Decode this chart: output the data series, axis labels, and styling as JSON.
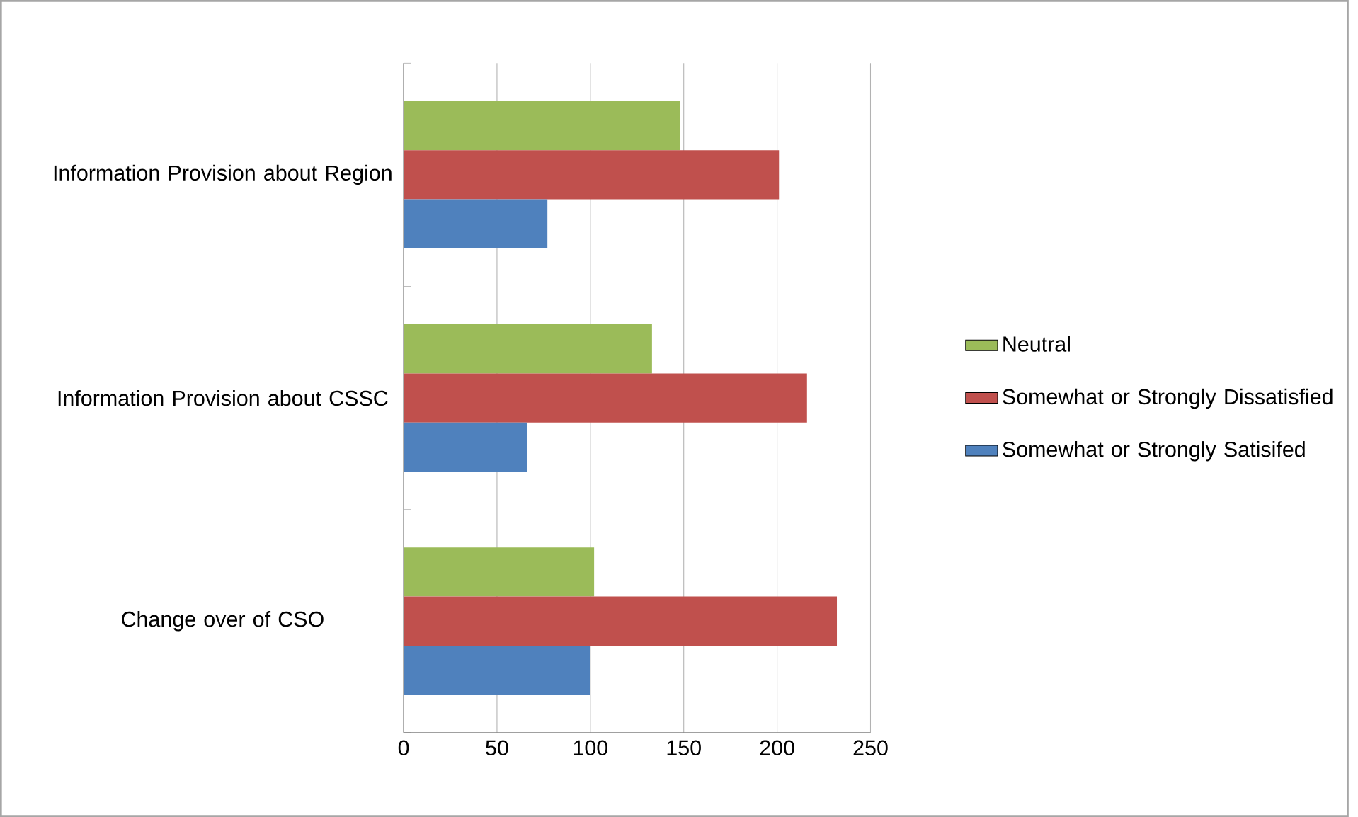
{
  "chart_data": {
    "type": "bar",
    "orientation": "horizontal",
    "categories": [
      "Information Provision about Region",
      "Information Provision about CSSC",
      "Change over of CSO"
    ],
    "series": [
      {
        "name": "Neutral",
        "color": "#9bbb59",
        "values": [
          148,
          133,
          102
        ]
      },
      {
        "name": "Somewhat or Strongly Dissatisfied",
        "color": "#c0504d",
        "values": [
          201,
          216,
          232
        ]
      },
      {
        "name": "Somewhat or Strongly Satisifed",
        "color": "#4f81bd",
        "values": [
          77,
          66,
          100
        ]
      }
    ],
    "xlim": [
      0,
      250
    ],
    "xticks": [
      0,
      50,
      100,
      150,
      200,
      250
    ],
    "grid": "x",
    "legend": "right"
  }
}
